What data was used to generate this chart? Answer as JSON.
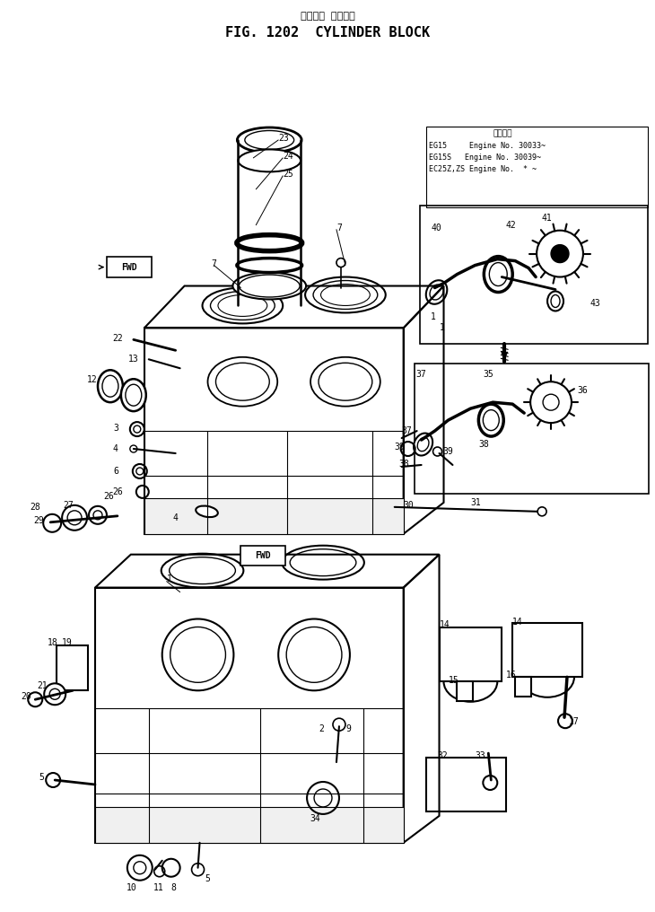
{
  "title_jp": "シリンダ ブロック",
  "title_en": "FIG. 1202  CYLINDER BLOCK",
  "bg_color": "#ffffff",
  "fig_width": 7.3,
  "fig_height": 10.16,
  "dpi": 100,
  "info_header": "適用号機",
  "info_lines": [
    [
      "EG15",
      "Engine No. 30033~"
    ],
    [
      "EG15S",
      "Engine No. 30039~"
    ],
    [
      "EC25Z,ZS",
      "Engine No.  * ~"
    ]
  ]
}
